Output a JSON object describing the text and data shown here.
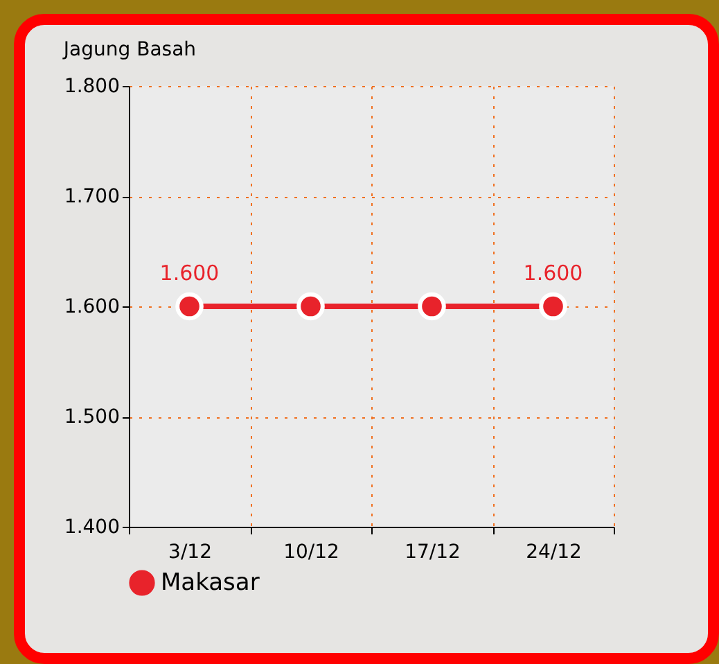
{
  "chart_data": {
    "type": "line",
    "title": "Jagung Basah",
    "categories": [
      "3/12",
      "10/12",
      "17/12",
      "24/12"
    ],
    "series": [
      {
        "name": "Makasar",
        "color": "#e8232b",
        "values": [
          1600,
          1600,
          1600,
          1600
        ],
        "value_labels": [
          "1.600",
          null,
          null,
          "1.600"
        ]
      }
    ],
    "ylim": [
      1400,
      1800
    ],
    "yticks": [
      {
        "value": 1400,
        "label": "1.400"
      },
      {
        "value": 1500,
        "label": "1.500"
      },
      {
        "value": 1600,
        "label": "1.600"
      },
      {
        "value": 1700,
        "label": "1.700"
      },
      {
        "value": 1800,
        "label": "1.800"
      }
    ],
    "grid": true,
    "legend": "bottom",
    "marker": "circle",
    "line_style": "solid"
  }
}
